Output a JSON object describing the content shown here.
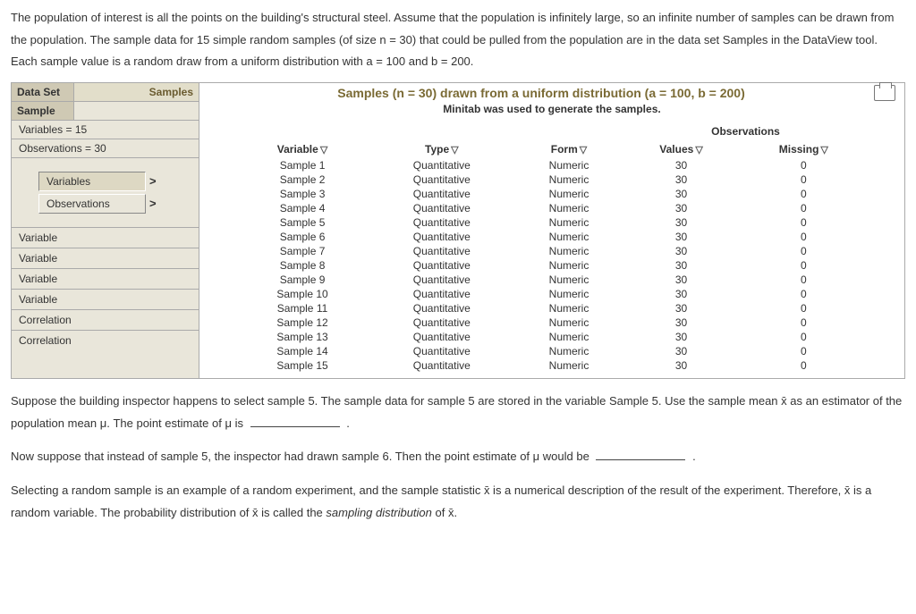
{
  "intro": "The population of interest is all the points on the building's structural steel. Assume that the population is infinitely large, so an infinite number of samples can be drawn from the population. The sample data for 15 simple random samples (of size n = 30) that could be pulled from the population are in the data set Samples in the DataView tool. Each sample value is a random draw from a uniform distribution with a = 100 and b = 200.",
  "sidebar": {
    "dataset_label": "Data Set",
    "dataset_value": "Samples",
    "sample_label": "Sample",
    "sample_value": "",
    "variables_meta": "Variables = 15",
    "observations_meta": "Observations = 30",
    "tab_variables": "Variables",
    "tab_observations": "Observations",
    "bottom": [
      "Variable",
      "Variable",
      "Variable",
      "Variable",
      "Correlation",
      "Correlation"
    ]
  },
  "main": {
    "title": "Samples (n = 30) drawn from a uniform distribution (a = 100, b = 200)",
    "subtitle": "Minitab was used to generate the samples.",
    "obs_group": "Observations",
    "headers": {
      "variable": "Variable",
      "type": "Type",
      "form": "Form",
      "values": "Values",
      "missing": "Missing"
    },
    "rows": [
      {
        "v": "Sample 1",
        "t": "Quantitative",
        "f": "Numeric",
        "val": "30",
        "m": "0"
      },
      {
        "v": "Sample 2",
        "t": "Quantitative",
        "f": "Numeric",
        "val": "30",
        "m": "0"
      },
      {
        "v": "Sample 3",
        "t": "Quantitative",
        "f": "Numeric",
        "val": "30",
        "m": "0"
      },
      {
        "v": "Sample 4",
        "t": "Quantitative",
        "f": "Numeric",
        "val": "30",
        "m": "0"
      },
      {
        "v": "Sample 5",
        "t": "Quantitative",
        "f": "Numeric",
        "val": "30",
        "m": "0"
      },
      {
        "v": "Sample 6",
        "t": "Quantitative",
        "f": "Numeric",
        "val": "30",
        "m": "0"
      },
      {
        "v": "Sample 7",
        "t": "Quantitative",
        "f": "Numeric",
        "val": "30",
        "m": "0"
      },
      {
        "v": "Sample 8",
        "t": "Quantitative",
        "f": "Numeric",
        "val": "30",
        "m": "0"
      },
      {
        "v": "Sample 9",
        "t": "Quantitative",
        "f": "Numeric",
        "val": "30",
        "m": "0"
      },
      {
        "v": "Sample 10",
        "t": "Quantitative",
        "f": "Numeric",
        "val": "30",
        "m": "0"
      },
      {
        "v": "Sample 11",
        "t": "Quantitative",
        "f": "Numeric",
        "val": "30",
        "m": "0"
      },
      {
        "v": "Sample 12",
        "t": "Quantitative",
        "f": "Numeric",
        "val": "30",
        "m": "0"
      },
      {
        "v": "Sample 13",
        "t": "Quantitative",
        "f": "Numeric",
        "val": "30",
        "m": "0"
      },
      {
        "v": "Sample 14",
        "t": "Quantitative",
        "f": "Numeric",
        "val": "30",
        "m": "0"
      },
      {
        "v": "Sample 15",
        "t": "Quantitative",
        "f": "Numeric",
        "val": "30",
        "m": "0"
      }
    ]
  },
  "after": {
    "p1a": "Suppose the building inspector happens to select sample 5. The sample data for sample 5 are stored in the variable Sample 5. Use the sample mean x̄ as an estimator of the population mean μ. The point estimate of μ is",
    "p1b": ".",
    "p2a": "Now suppose that instead of sample 5, the inspector had drawn sample 6. Then the point estimate of μ would be",
    "p2b": ".",
    "p3a": "Selecting a random sample is an example of a random experiment, and the sample statistic x̄ is a numerical description of the result of the experiment. Therefore, x̄ is a random variable. The probability distribution of x̄ is called the ",
    "p3em": "sampling distribution",
    "p3b": " of x̄."
  }
}
